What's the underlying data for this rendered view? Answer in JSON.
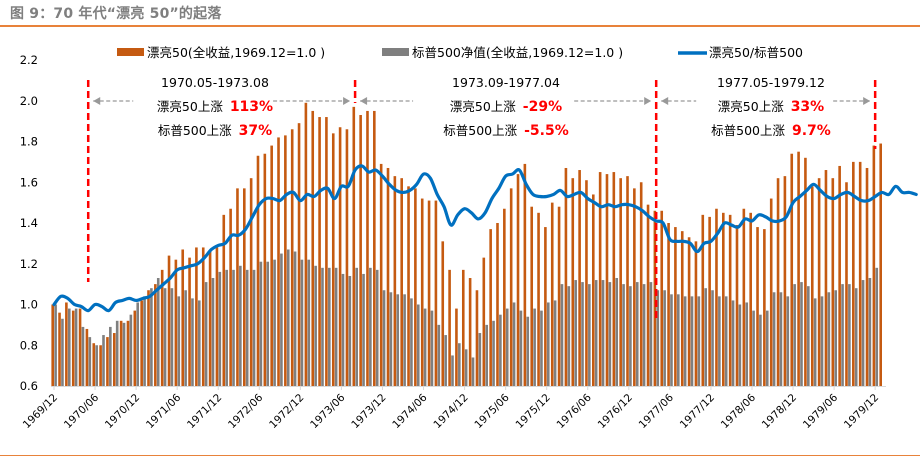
{
  "figure_title": "图 9：70 年代“漂亮 50”的起落",
  "colors": {
    "nifty50": "#c55a11",
    "sp500": "#7f7f7f",
    "ratio": "#0070c0",
    "divider": "#ff0000",
    "arrow": "#999999",
    "rule": "#e8823a",
    "highlight": "#ff0000"
  },
  "annotations": [
    {
      "period": "1970.05-1973.08",
      "line1_label": "漂亮50上涨",
      "line1_value": "113%",
      "line2_label": "标普500上涨",
      "line2_value": "37%"
    },
    {
      "period": "1973.09-1977.04",
      "line1_label": "漂亮50上涨",
      "line1_value": "-29%",
      "line2_label": "标普500上涨",
      "line2_value": "-5.5%"
    },
    {
      "period": "1977.05-1979.12",
      "line1_label": "漂亮50上涨",
      "line1_value": "33%",
      "line2_label": "标普500上涨",
      "line2_value": "9.7%"
    }
  ],
  "chart_data": {
    "type": "bar",
    "title": "",
    "xlabel": "",
    "ylabel": "",
    "ylim": [
      0.6,
      2.2
    ],
    "yticks": [
      "0.6",
      "0.8",
      "1.0",
      "1.2",
      "1.4",
      "1.6",
      "1.8",
      "2.0",
      "2.2"
    ],
    "xtick_labels": [
      "1969/12",
      "1970/06",
      "1970/12",
      "1971/06",
      "1971/12",
      "1972/06",
      "1972/12",
      "1973/06",
      "1973/12",
      "1974/06",
      "1974/12",
      "1975/06",
      "1975/12",
      "1976/06",
      "1976/12",
      "1977/06",
      "1977/12",
      "1978/06",
      "1978/12",
      "1979/06",
      "1979/12"
    ],
    "x_start": "1969/12",
    "x_end": "1979/12",
    "frequency": "monthly",
    "legend_position": "top",
    "divider_months": [
      "1970/05",
      "1973/08",
      "1977/04",
      "1979/12"
    ],
    "series": [
      {
        "name": "漂亮50(全收益,1969.12=1.0 )",
        "kind": "bar",
        "values": [
          1.0,
          0.96,
          1.01,
          0.97,
          0.98,
          0.88,
          0.81,
          0.8,
          0.84,
          0.86,
          0.92,
          0.92,
          0.97,
          1.02,
          1.07,
          1.1,
          1.17,
          1.24,
          1.22,
          1.27,
          1.23,
          1.28,
          1.28,
          1.26,
          1.28,
          1.44,
          1.47,
          1.57,
          1.57,
          1.62,
          1.73,
          1.74,
          1.78,
          1.82,
          1.83,
          1.86,
          1.89,
          1.99,
          1.95,
          1.92,
          1.92,
          1.84,
          1.87,
          1.86,
          1.97,
          1.93,
          1.95,
          1.95,
          1.69,
          1.67,
          1.63,
          1.62,
          1.58,
          1.57,
          1.52,
          1.51,
          1.51,
          1.31,
          1.17,
          0.98,
          1.17,
          1.13,
          1.07,
          1.23,
          1.37,
          1.4,
          1.47,
          1.57,
          1.64,
          1.69,
          1.48,
          1.45,
          1.38,
          1.5,
          1.48,
          1.67,
          1.62,
          1.66,
          1.61,
          1.54,
          1.65,
          1.64,
          1.65,
          1.62,
          1.63,
          1.57,
          1.6,
          1.49,
          1.46,
          1.46,
          1.4,
          1.38,
          1.36,
          1.33,
          1.31,
          1.44,
          1.43,
          1.47,
          1.45,
          1.44,
          1.39,
          1.47,
          1.45,
          1.38,
          1.37,
          1.52,
          1.62,
          1.63,
          1.74,
          1.75,
          1.72,
          1.58,
          1.62,
          1.66,
          1.62,
          1.68,
          1.6,
          1.7,
          1.7,
          1.67,
          1.78,
          1.79
        ]
      },
      {
        "name": "标普500净值(全收益,1969.12=1.0 )",
        "kind": "bar",
        "values": [
          1.0,
          0.93,
          0.98,
          0.98,
          0.89,
          0.84,
          0.8,
          0.85,
          0.89,
          0.92,
          0.91,
          0.95,
          1.01,
          1.04,
          1.08,
          1.13,
          1.08,
          1.08,
          1.04,
          1.07,
          1.03,
          1.02,
          1.11,
          1.13,
          1.16,
          1.17,
          1.17,
          1.19,
          1.17,
          1.17,
          1.21,
          1.21,
          1.22,
          1.25,
          1.27,
          1.26,
          1.22,
          1.22,
          1.19,
          1.18,
          1.18,
          1.18,
          1.15,
          1.14,
          1.18,
          1.15,
          1.18,
          1.17,
          1.07,
          1.06,
          1.05,
          1.05,
          1.03,
          1.0,
          0.98,
          0.97,
          0.9,
          0.85,
          0.75,
          0.81,
          0.78,
          0.74,
          0.86,
          0.9,
          0.92,
          0.95,
          0.98,
          1.01,
          0.97,
          0.94,
          0.98,
          0.97,
          1.01,
          1.02,
          1.1,
          1.09,
          1.12,
          1.11,
          1.1,
          1.12,
          1.12,
          1.11,
          1.13,
          1.1,
          1.09,
          1.11,
          1.1,
          1.11,
          1.07,
          1.07,
          1.05,
          1.05,
          1.04,
          1.04,
          1.04,
          1.08,
          1.07,
          1.04,
          1.04,
          1.02,
          1.0,
          1.01,
          0.97,
          0.95,
          0.97,
          1.06,
          1.06,
          1.04,
          1.1,
          1.11,
          1.09,
          1.03,
          1.04,
          1.06,
          1.07,
          1.1,
          1.1,
          1.08,
          1.12,
          1.13,
          1.18
        ]
      },
      {
        "name": "漂亮50/标普500",
        "kind": "line",
        "values": [
          1.0,
          1.04,
          1.03,
          1.0,
          0.99,
          0.97,
          1.0,
          0.99,
          0.97,
          1.01,
          1.02,
          1.03,
          1.02,
          1.03,
          1.04,
          1.07,
          1.1,
          1.13,
          1.17,
          1.18,
          1.19,
          1.2,
          1.23,
          1.27,
          1.29,
          1.3,
          1.34,
          1.34,
          1.37,
          1.43,
          1.49,
          1.52,
          1.52,
          1.51,
          1.54,
          1.55,
          1.51,
          1.54,
          1.53,
          1.56,
          1.57,
          1.52,
          1.58,
          1.58,
          1.66,
          1.68,
          1.65,
          1.66,
          1.63,
          1.59,
          1.56,
          1.55,
          1.56,
          1.59,
          1.64,
          1.62,
          1.54,
          1.48,
          1.39,
          1.44,
          1.47,
          1.45,
          1.42,
          1.45,
          1.52,
          1.57,
          1.63,
          1.64,
          1.66,
          1.59,
          1.54,
          1.53,
          1.53,
          1.54,
          1.56,
          1.53,
          1.54,
          1.55,
          1.52,
          1.5,
          1.48,
          1.49,
          1.48,
          1.49,
          1.49,
          1.48,
          1.46,
          1.43,
          1.41,
          1.4,
          1.32,
          1.31,
          1.31,
          1.3,
          1.26,
          1.3,
          1.31,
          1.35,
          1.4,
          1.39,
          1.38,
          1.42,
          1.41,
          1.44,
          1.43,
          1.41,
          1.41,
          1.43,
          1.5,
          1.53,
          1.56,
          1.59,
          1.56,
          1.53,
          1.52,
          1.54,
          1.55,
          1.53,
          1.51,
          1.51,
          1.53,
          1.55,
          1.54,
          1.58,
          1.55,
          1.55,
          1.54
        ]
      }
    ]
  }
}
